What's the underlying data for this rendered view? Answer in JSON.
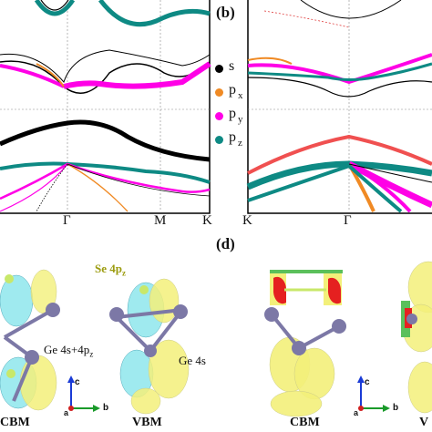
{
  "panels": {
    "b_label": "(b)",
    "d_label": "(d)"
  },
  "band_plot_left": {
    "x_ticks": [
      "Γ",
      "M",
      "K"
    ]
  },
  "band_plot_right": {
    "x_ticks": [
      "K",
      "Γ"
    ]
  },
  "legend": {
    "items": [
      {
        "dot_color": "#000000",
        "text": "s",
        "sub": ""
      },
      {
        "dot_color": "#f08a24",
        "text": "p",
        "sub": "x"
      },
      {
        "dot_color": "#ff00e6",
        "text": "p",
        "sub": "y"
      },
      {
        "dot_color": "#0e8a84",
        "text": "p",
        "sub": "z"
      }
    ]
  },
  "orbitals": {
    "annot_se": "Se 4p",
    "annot_se_sub": "z",
    "annot_ge_main": "Ge 4s+4p",
    "annot_ge_main_sub": "z",
    "annot_ge4s": "Ge 4s",
    "cbm_left": "CBM",
    "vbm_left": "VBM",
    "cbm_right": "CBM",
    "vbm_right": "V"
  },
  "axes_triad": {
    "c": "c",
    "b": "b",
    "a": "a"
  },
  "colors": {
    "s": "#000000",
    "px": "#f08a24",
    "py": "#ff00e6",
    "pz": "#0e8a84",
    "cloud_yellow": "#f3f07a",
    "cloud_cyan": "#7fe3ea",
    "atom": "#7c78a6"
  }
}
